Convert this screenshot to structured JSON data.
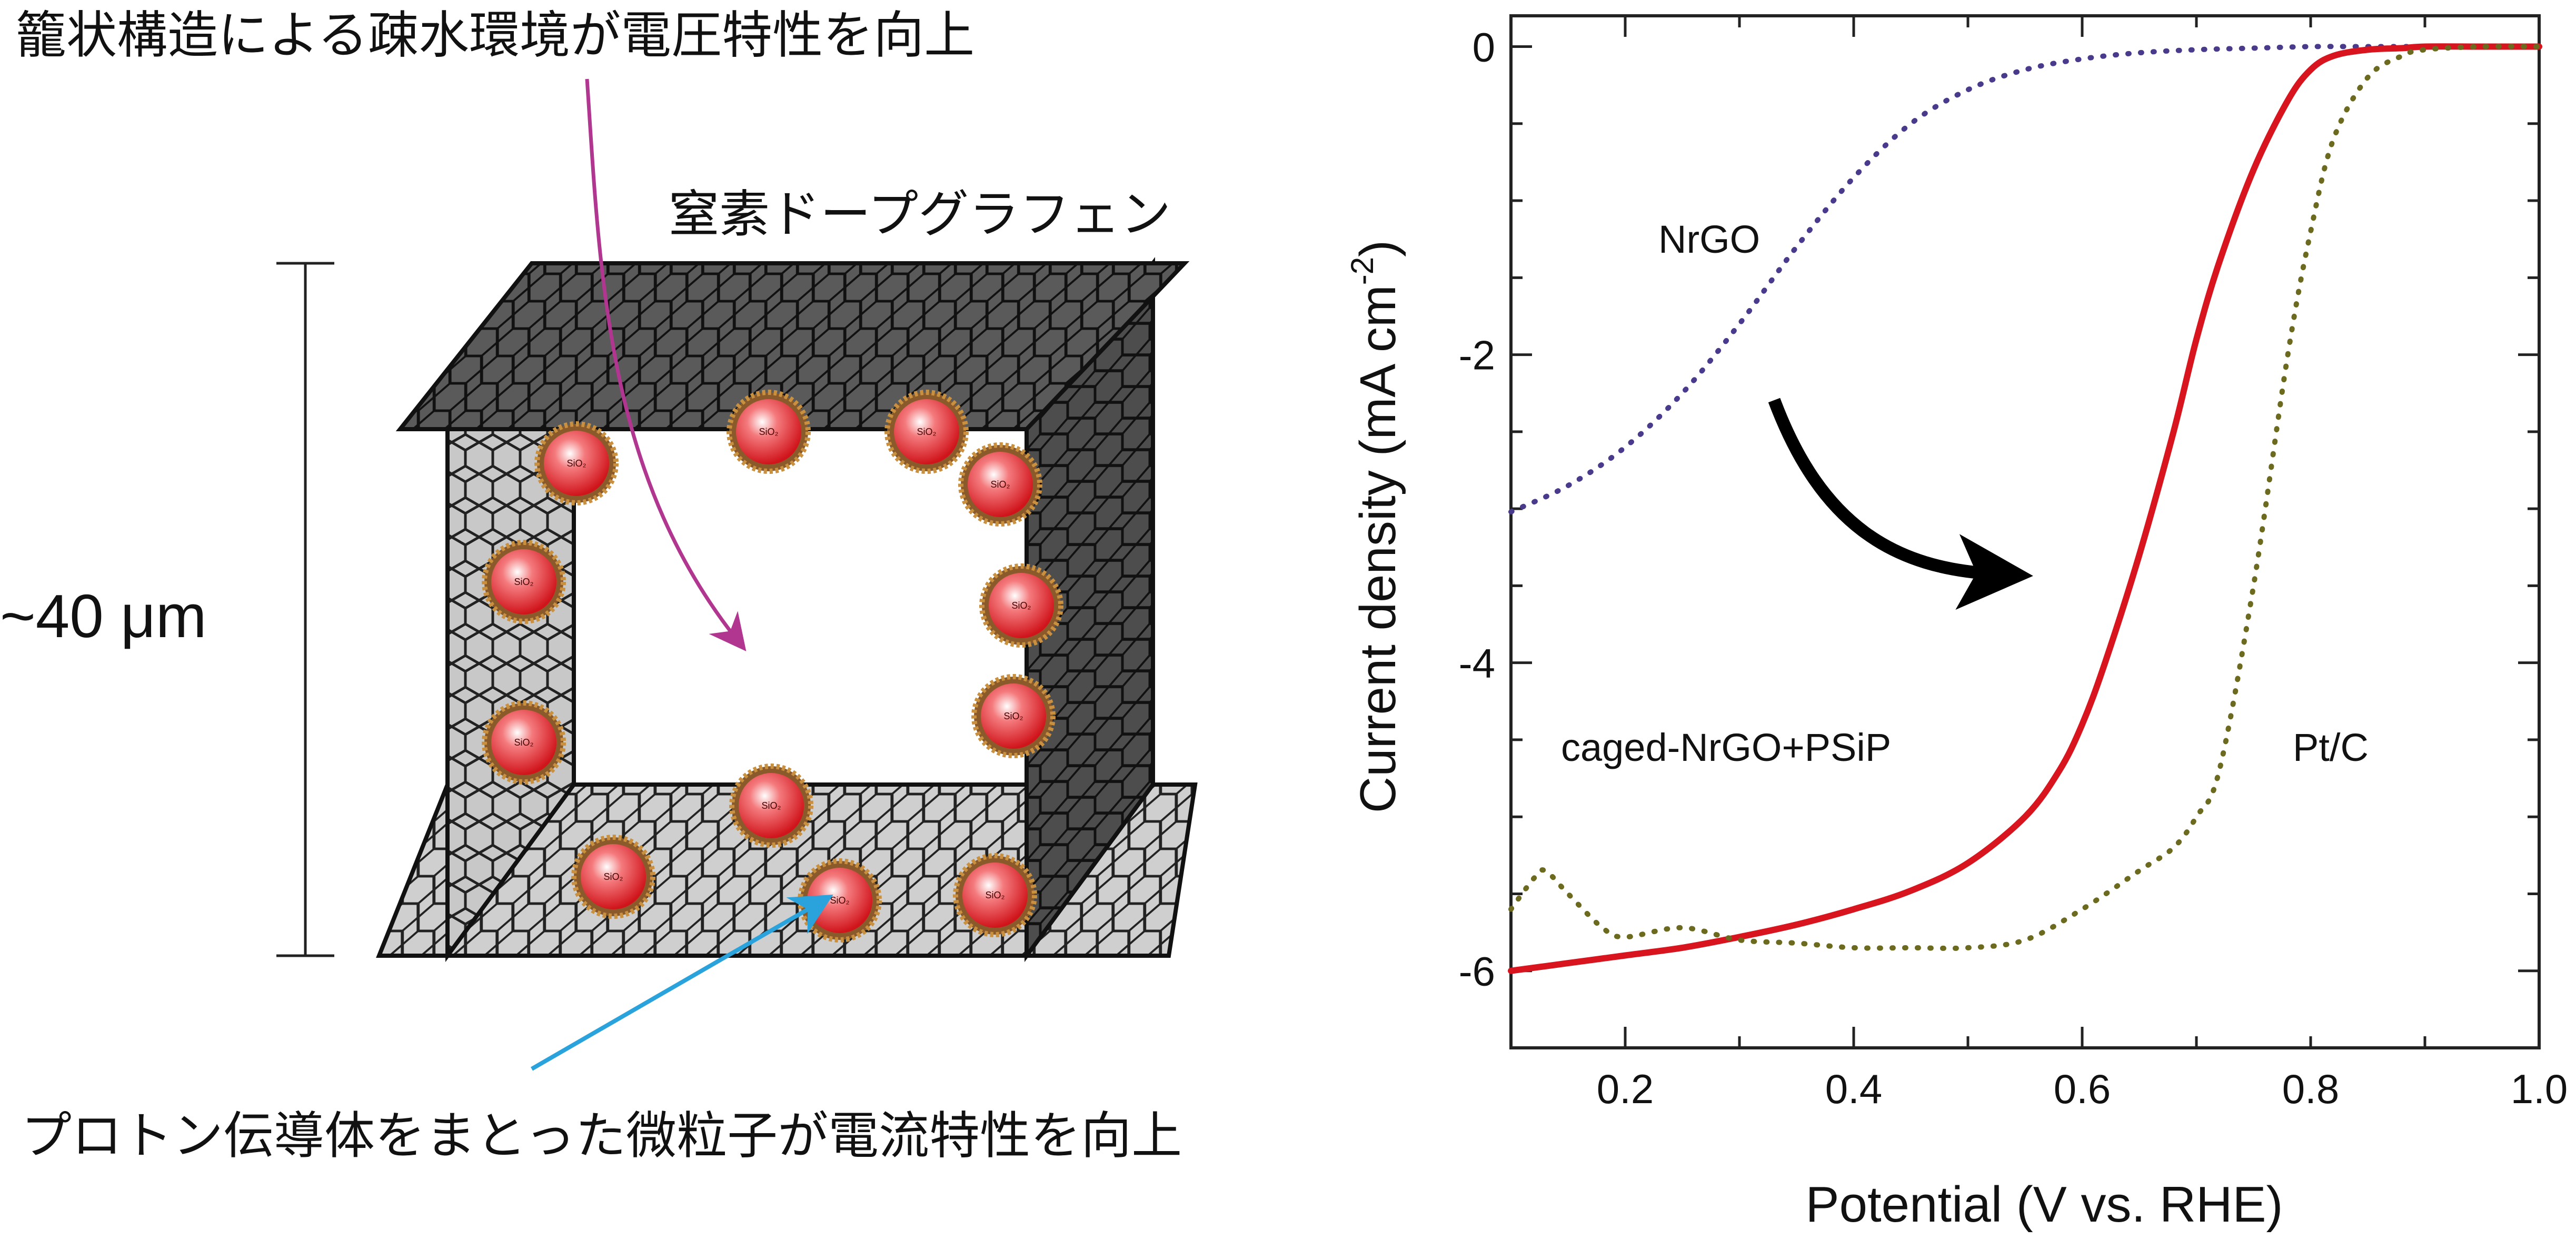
{
  "diagram": {
    "title_top": "籠状構造による疎水環境が電圧特性を向上",
    "label_graphene": "窒素ドープグラフェン",
    "label_size": "~40 μm",
    "label_bottom": "プロトン伝導体をまとった微粒子が電流特性を向上",
    "particle_label": "SiO₂",
    "colors": {
      "magenta_arrow": "#b0368f",
      "blue_arrow": "#2aa3dc",
      "particle": "#e3343a"
    }
  },
  "chart_data": {
    "type": "line",
    "xlabel": "Potential (V vs. RHE)",
    "ylabel_main": "Current density (mA cm",
    "ylabel_exp": "-2",
    "ylabel_close": ")",
    "xlim": [
      0.1,
      1.0
    ],
    "ylim": [
      -6.5,
      0.2
    ],
    "x_ticks": [
      "0.2",
      "0.4",
      "0.6",
      "0.8",
      "1.0"
    ],
    "x_tick_values": [
      0.2,
      0.4,
      0.6,
      0.8,
      1.0
    ],
    "y_ticks": [
      "0",
      "-2",
      "-4",
      "-6"
    ],
    "y_tick_values": [
      0,
      -2,
      -4,
      -6
    ],
    "series": [
      {
        "name": "NrGO",
        "color": "#4a3a8c",
        "dash": "dotted",
        "x": [
          0.1,
          0.15,
          0.2,
          0.25,
          0.3,
          0.35,
          0.4,
          0.45,
          0.5,
          0.55,
          0.6,
          0.65,
          0.7,
          0.75,
          0.8,
          0.85,
          0.9,
          0.95,
          1.0
        ],
        "y": [
          -3.02,
          -2.85,
          -2.6,
          -2.25,
          -1.8,
          -1.3,
          -0.85,
          -0.5,
          -0.28,
          -0.15,
          -0.08,
          -0.04,
          -0.02,
          -0.01,
          0.0,
          0.0,
          0.0,
          0.0,
          0.0
        ]
      },
      {
        "name": "caged-NrGO+PSiP",
        "color": "#d8151e",
        "dash": "solid",
        "x": [
          0.1,
          0.15,
          0.2,
          0.25,
          0.3,
          0.35,
          0.4,
          0.45,
          0.5,
          0.55,
          0.58,
          0.6,
          0.62,
          0.65,
          0.68,
          0.7,
          0.72,
          0.75,
          0.78,
          0.8,
          0.82,
          0.85,
          0.88,
          0.9,
          0.95,
          1.0
        ],
        "y": [
          -6.0,
          -5.95,
          -5.9,
          -5.85,
          -5.78,
          -5.7,
          -5.6,
          -5.48,
          -5.3,
          -5.0,
          -4.7,
          -4.4,
          -4.0,
          -3.3,
          -2.5,
          -1.9,
          -1.4,
          -0.8,
          -0.35,
          -0.15,
          -0.06,
          -0.02,
          -0.01,
          0.0,
          0.0,
          0.0
        ]
      },
      {
        "name": "Pt/C",
        "color": "#6b6a1e",
        "dash": "dotted",
        "x": [
          0.1,
          0.12,
          0.13,
          0.15,
          0.18,
          0.2,
          0.25,
          0.3,
          0.35,
          0.4,
          0.45,
          0.5,
          0.55,
          0.6,
          0.65,
          0.68,
          0.7,
          0.72,
          0.75,
          0.78,
          0.8,
          0.82,
          0.85,
          0.88,
          0.9,
          0.95,
          1.0
        ],
        "y": [
          -5.6,
          -5.4,
          -5.35,
          -5.5,
          -5.72,
          -5.78,
          -5.72,
          -5.8,
          -5.82,
          -5.85,
          -5.85,
          -5.85,
          -5.8,
          -5.6,
          -5.35,
          -5.2,
          -5.0,
          -4.7,
          -3.5,
          -2.0,
          -1.2,
          -0.6,
          -0.2,
          -0.06,
          -0.02,
          0.0,
          0.0
        ]
      }
    ],
    "annotations": {
      "arrow": "black curved arrow indicating shift from NrGO to caged-NrGO+PSiP"
    }
  }
}
